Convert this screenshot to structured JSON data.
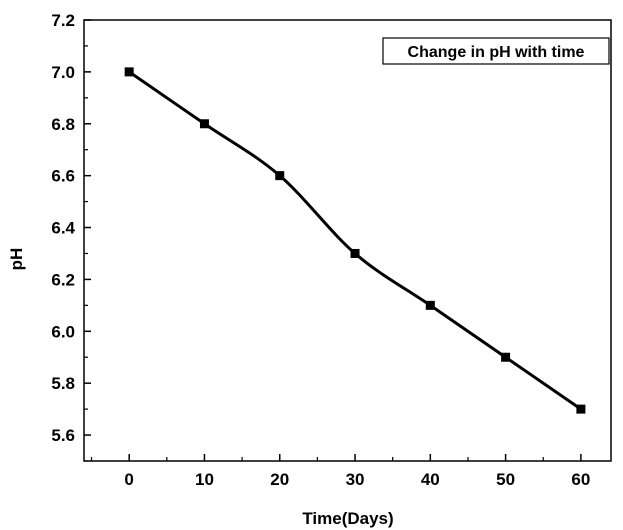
{
  "chart_data": {
    "type": "line",
    "title": "",
    "xlabel": "Time(Days)",
    "ylabel": "pH",
    "xlim": [
      -6,
      64
    ],
    "ylim": [
      5.5,
      7.2
    ],
    "x_ticks": [
      0,
      10,
      20,
      30,
      40,
      50,
      60
    ],
    "x_tick_labels": [
      "0",
      "10",
      "20",
      "30",
      "40",
      "50",
      "60"
    ],
    "y_ticks": [
      5.6,
      5.8,
      6.0,
      6.2,
      6.4,
      6.6,
      6.8,
      7.0,
      7.2
    ],
    "y_tick_labels": [
      "5.6",
      "5.8",
      "6.0",
      "6.2",
      "6.4",
      "6.6",
      "6.8",
      "7.0",
      "7.2"
    ],
    "grid": false,
    "legend_position": "top-right",
    "series": [
      {
        "name": "Change in pH with time",
        "marker": "square",
        "color": "#000000",
        "x": [
          0,
          10,
          20,
          30,
          40,
          50,
          60
        ],
        "y": [
          7.0,
          6.8,
          6.6,
          6.3,
          6.1,
          5.9,
          5.7
        ]
      }
    ]
  }
}
